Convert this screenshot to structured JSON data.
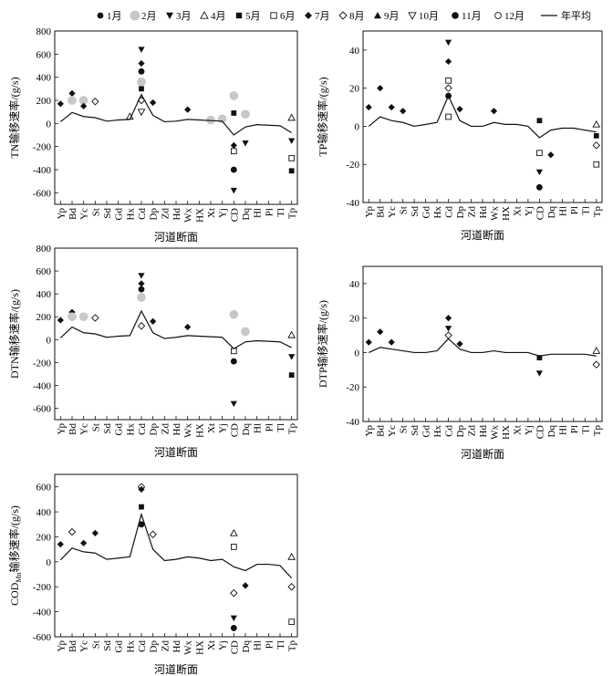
{
  "legend": {
    "months": [
      "1月",
      "2月",
      "3月",
      "4月",
      "5月",
      "6月",
      "7月",
      "8月",
      "9月",
      "10月",
      "11月",
      "12月"
    ],
    "markers": [
      "dot",
      "disc-gray",
      "tri-down",
      "tri-up-open",
      "square",
      "square-open",
      "diamond",
      "diamond-open",
      "tri-up",
      "tri-down-open",
      "circle",
      "circle-open"
    ],
    "avg_label": "年平均"
  },
  "colors": {
    "black": "#111111",
    "gray": "#c8c8c8",
    "axis": "#000000"
  },
  "sections": [
    "Yp",
    "Bd",
    "Yc",
    "St",
    "Sd",
    "Gd",
    "Hx",
    "Cd",
    "Dp",
    "Zd",
    "Hd",
    "Wx",
    "HX",
    "Xt",
    "Yj",
    "CD",
    "Dq",
    "Hl",
    "Pl",
    "Tl",
    "Tp"
  ],
  "chart_data": [
    {
      "type": "scatter",
      "ylabel": "TN输移速率/(g/s)",
      "xlabel": "河道断面",
      "ylim": [
        -700,
        800
      ],
      "yticks": [
        -600,
        -400,
        -200,
        0,
        200,
        400,
        600,
        800
      ],
      "average": [
        15,
        95,
        60,
        50,
        20,
        30,
        35,
        250,
        70,
        15,
        20,
        35,
        30,
        25,
        20,
        -100,
        -30,
        -10,
        -15,
        -20,
        -80
      ],
      "points": [
        {
          "s": "Bd",
          "m": 7,
          "y": 260
        },
        {
          "s": "Yp",
          "m": 7,
          "y": 170
        },
        {
          "s": "Yc",
          "m": 2,
          "y": 200
        },
        {
          "s": "Bd",
          "m": 2,
          "y": 200
        },
        {
          "s": "St",
          "m": 8,
          "y": 190
        },
        {
          "s": "Yc",
          "m": 7,
          "y": 150
        },
        {
          "s": "Cd",
          "m": 3,
          "y": 640
        },
        {
          "s": "Cd",
          "m": 7,
          "y": 520
        },
        {
          "s": "Cd",
          "m": 11,
          "y": 450
        },
        {
          "s": "Cd",
          "m": 2,
          "y": 360
        },
        {
          "s": "Cd",
          "m": 5,
          "y": 300
        },
        {
          "s": "Cd",
          "m": 8,
          "y": 200
        },
        {
          "s": "Cd",
          "m": 10,
          "y": 100
        },
        {
          "s": "Dp",
          "m": 7,
          "y": 180
        },
        {
          "s": "Wx",
          "m": 7,
          "y": 120
        },
        {
          "s": "CD",
          "m": 2,
          "y": 240
        },
        {
          "s": "CD",
          "m": 5,
          "y": 90
        },
        {
          "s": "CD",
          "m": 11,
          "y": -400
        },
        {
          "s": "CD",
          "m": 3,
          "y": -580
        },
        {
          "s": "CD",
          "m": 6,
          "y": -240
        },
        {
          "s": "CD",
          "m": 7,
          "y": -190
        },
        {
          "s": "Dq",
          "m": 2,
          "y": 80
        },
        {
          "s": "Dq",
          "m": 3,
          "y": -170
        },
        {
          "s": "Tp",
          "m": 6,
          "y": -300
        },
        {
          "s": "Tp",
          "m": 5,
          "y": -410
        },
        {
          "s": "Tp",
          "m": 3,
          "y": -150
        },
        {
          "s": "Tp",
          "m": 4,
          "y": 50
        },
        {
          "s": "Xt",
          "m": 2,
          "y": 30
        },
        {
          "s": "Yj",
          "m": 2,
          "y": 40
        },
        {
          "s": "Hx",
          "m": 4,
          "y": 60
        }
      ]
    },
    {
      "type": "scatter",
      "ylabel": "TP输移速率/(g/s)",
      "xlabel": "河道断面",
      "ylim": [
        -40,
        50
      ],
      "yticks": [
        -40,
        -20,
        0,
        20,
        40
      ],
      "average": [
        0,
        5,
        3,
        2,
        0,
        1,
        2,
        16,
        3,
        0,
        0,
        2,
        1,
        1,
        0,
        -6,
        -2,
        -1,
        -1,
        -2,
        -3
      ],
      "points": [
        {
          "s": "Yp",
          "m": 7,
          "y": 10
        },
        {
          "s": "Bd",
          "m": 7,
          "y": 20
        },
        {
          "s": "Yc",
          "m": 7,
          "y": 10
        },
        {
          "s": "St",
          "m": 7,
          "y": 8
        },
        {
          "s": "Cd",
          "m": 3,
          "y": 44
        },
        {
          "s": "Cd",
          "m": 7,
          "y": 34
        },
        {
          "s": "Cd",
          "m": 6,
          "y": 24
        },
        {
          "s": "Cd",
          "m": 8,
          "y": 20
        },
        {
          "s": "Cd",
          "m": 11,
          "y": 16
        },
        {
          "s": "Cd",
          "m": 6,
          "y": 5
        },
        {
          "s": "Dp",
          "m": 7,
          "y": 9
        },
        {
          "s": "Wx",
          "m": 7,
          "y": 8
        },
        {
          "s": "CD",
          "m": 5,
          "y": 3
        },
        {
          "s": "CD",
          "m": 6,
          "y": -14
        },
        {
          "s": "CD",
          "m": 3,
          "y": -24
        },
        {
          "s": "CD",
          "m": 11,
          "y": -32
        },
        {
          "s": "Dq",
          "m": 7,
          "y": -15
        },
        {
          "s": "Tp",
          "m": 6,
          "y": -20
        },
        {
          "s": "Tp",
          "m": 8,
          "y": -10
        },
        {
          "s": "Tp",
          "m": 5,
          "y": -5
        },
        {
          "s": "Tp",
          "m": 4,
          "y": 1
        }
      ]
    },
    {
      "type": "scatter",
      "ylabel": "DTN输移速率/(g/s)",
      "xlabel": "河道断面",
      "ylim": [
        -700,
        800
      ],
      "yticks": [
        -600,
        -400,
        -200,
        0,
        200,
        400,
        600,
        800
      ],
      "average": [
        15,
        110,
        60,
        50,
        20,
        30,
        35,
        250,
        60,
        10,
        20,
        35,
        30,
        25,
        20,
        -80,
        -20,
        -10,
        -15,
        -20,
        -70
      ],
      "points": [
        {
          "s": "Yp",
          "m": 7,
          "y": 170
        },
        {
          "s": "Bd",
          "m": 7,
          "y": 240
        },
        {
          "s": "Yc",
          "m": 2,
          "y": 200
        },
        {
          "s": "Bd",
          "m": 2,
          "y": 200
        },
        {
          "s": "St",
          "m": 8,
          "y": 190
        },
        {
          "s": "Cd",
          "m": 3,
          "y": 560
        },
        {
          "s": "Cd",
          "m": 7,
          "y": 490
        },
        {
          "s": "Cd",
          "m": 11,
          "y": 440
        },
        {
          "s": "Cd",
          "m": 2,
          "y": 370
        },
        {
          "s": "Cd",
          "m": 8,
          "y": 120
        },
        {
          "s": "Dp",
          "m": 7,
          "y": 160
        },
        {
          "s": "Wx",
          "m": 7,
          "y": 110
        },
        {
          "s": "CD",
          "m": 2,
          "y": 220
        },
        {
          "s": "CD",
          "m": 11,
          "y": -190
        },
        {
          "s": "CD",
          "m": 3,
          "y": -560
        },
        {
          "s": "CD",
          "m": 6,
          "y": -100
        },
        {
          "s": "Dq",
          "m": 2,
          "y": 70
        },
        {
          "s": "Tp",
          "m": 5,
          "y": -310
        },
        {
          "s": "Tp",
          "m": 3,
          "y": -150
        },
        {
          "s": "Tp",
          "m": 4,
          "y": 40
        }
      ]
    },
    {
      "type": "scatter",
      "ylabel": "DTP输移速率/(g/s)",
      "xlabel": "河道断面",
      "ylim": [
        -40,
        50
      ],
      "yticks": [
        -40,
        -20,
        0,
        20,
        40
      ],
      "average": [
        0,
        3,
        2,
        1,
        0,
        0,
        1,
        8,
        2,
        0,
        0,
        1,
        0,
        0,
        0,
        -2,
        -1,
        -1,
        -1,
        -1,
        -2
      ],
      "points": [
        {
          "s": "Yp",
          "m": 7,
          "y": 6
        },
        {
          "s": "Bd",
          "m": 7,
          "y": 12
        },
        {
          "s": "Yc",
          "m": 7,
          "y": 6
        },
        {
          "s": "Cd",
          "m": 7,
          "y": 20
        },
        {
          "s": "Cd",
          "m": 3,
          "y": 14
        },
        {
          "s": "Cd",
          "m": 8,
          "y": 10
        },
        {
          "s": "Dp",
          "m": 7,
          "y": 5
        },
        {
          "s": "CD",
          "m": 3,
          "y": -12
        },
        {
          "s": "CD",
          "m": 5,
          "y": -3
        },
        {
          "s": "Tp",
          "m": 8,
          "y": -7
        },
        {
          "s": "Tp",
          "m": 4,
          "y": 1
        }
      ]
    },
    {
      "type": "scatter",
      "ylabel": "COD",
      "ylabel_sub": "Mn",
      "ylabel_rest": "输移速率/(g/s)",
      "xlabel": "河道断面",
      "ylim": [
        -600,
        700
      ],
      "yticks": [
        -600,
        -400,
        -200,
        0,
        200,
        400,
        600
      ],
      "average": [
        15,
        110,
        80,
        70,
        20,
        30,
        40,
        380,
        100,
        10,
        20,
        40,
        30,
        10,
        20,
        -40,
        -70,
        -20,
        -20,
        -30,
        -130
      ],
      "points": [
        {
          "s": "Yp",
          "m": 7,
          "y": 140
        },
        {
          "s": "Bd",
          "m": 8,
          "y": 240
        },
        {
          "s": "Yc",
          "m": 7,
          "y": 150
        },
        {
          "s": "St",
          "m": 7,
          "y": 230
        },
        {
          "s": "Cd",
          "m": 8,
          "y": 600
        },
        {
          "s": "Cd",
          "m": 7,
          "y": 580
        },
        {
          "s": "Cd",
          "m": 5,
          "y": 440
        },
        {
          "s": "Cd",
          "m": 11,
          "y": 300
        },
        {
          "s": "Dp",
          "m": 8,
          "y": 220
        },
        {
          "s": "CD",
          "m": 4,
          "y": 230
        },
        {
          "s": "CD",
          "m": 3,
          "y": -450
        },
        {
          "s": "CD",
          "m": 11,
          "y": -530
        },
        {
          "s": "CD",
          "m": 8,
          "y": -250
        },
        {
          "s": "CD",
          "m": 6,
          "y": 120
        },
        {
          "s": "Dq",
          "m": 7,
          "y": -190
        },
        {
          "s": "Tp",
          "m": 6,
          "y": -480
        },
        {
          "s": "Tp",
          "m": 4,
          "y": 40
        },
        {
          "s": "Tp",
          "m": 8,
          "y": -200
        }
      ]
    }
  ]
}
